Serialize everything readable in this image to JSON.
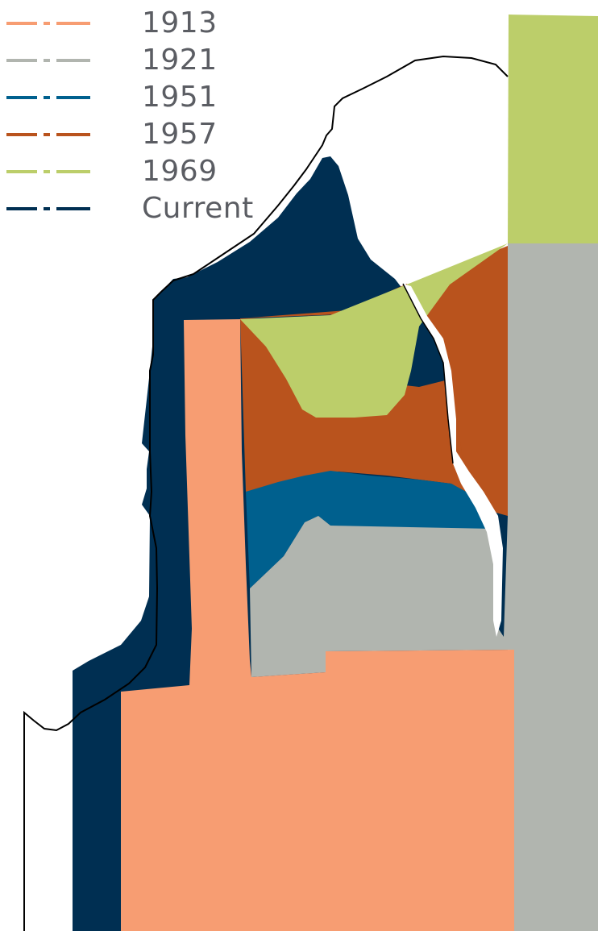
{
  "legend": {
    "items": [
      {
        "label": "1913",
        "color": "#F79D72"
      },
      {
        "label": "1921",
        "color": "#B1B5AF"
      },
      {
        "label": "1951",
        "color": "#00608E"
      },
      {
        "label": "1957",
        "color": "#B9531D"
      },
      {
        "label": "1969",
        "color": "#BCCE6A"
      },
      {
        "label": "Current",
        "color": "#002F52"
      }
    ]
  },
  "map": {
    "boundary_color": "#000000",
    "background": "#FFFFFF"
  }
}
